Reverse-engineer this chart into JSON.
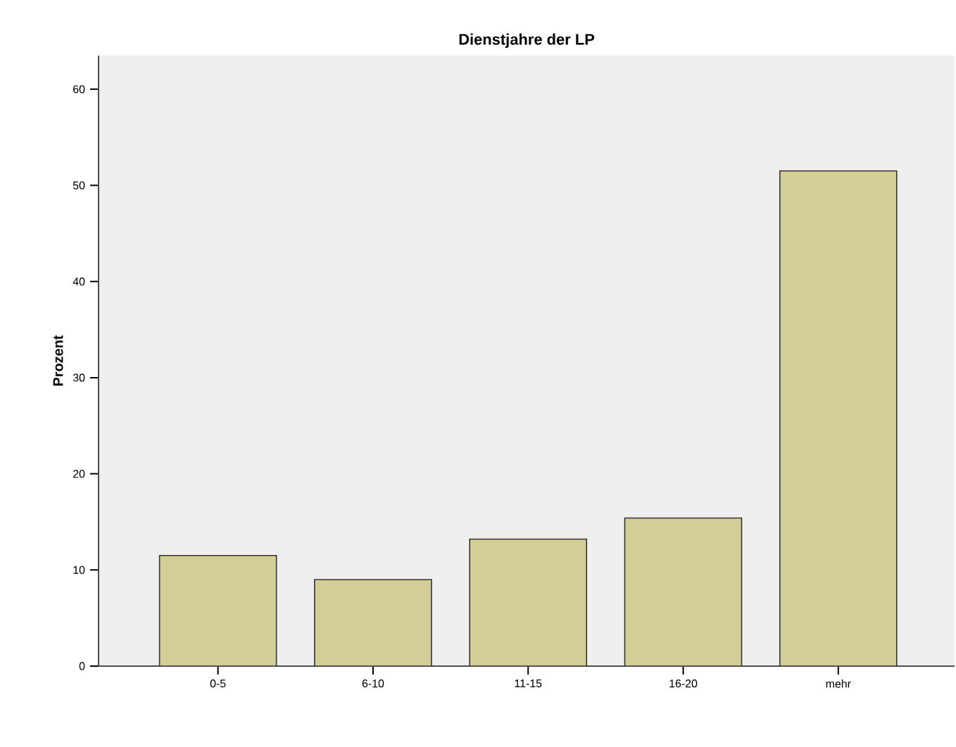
{
  "chart_data": {
    "type": "bar",
    "title": "Dienstjahre der LP",
    "ylabel": "Prozent",
    "categories": [
      "0-5",
      "6-10",
      "11-15",
      "16-20",
      "mehr"
    ],
    "values": [
      11.5,
      9.0,
      13.2,
      15.4,
      51.5
    ],
    "color": "#d3ce97",
    "ylim": [
      0,
      63.5
    ],
    "yticks": [
      0,
      10,
      20,
      30,
      40,
      50,
      60
    ]
  }
}
